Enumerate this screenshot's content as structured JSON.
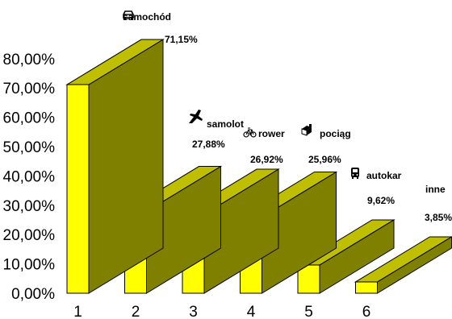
{
  "chart_data": {
    "type": "bar",
    "style": "3d",
    "categories": [
      "1",
      "2",
      "3",
      "4",
      "5",
      "6"
    ],
    "series_labels": [
      "samochód",
      "samolot",
      "rower",
      "pociąg",
      "autokar",
      "inne"
    ],
    "series_icons": [
      "car-icon",
      "airplane-icon",
      "bicycle-icon",
      "train-icon",
      "bus-icon",
      ""
    ],
    "values": [
      71.15,
      27.88,
      26.92,
      25.96,
      9.62,
      3.85
    ],
    "value_labels": [
      "71,15%",
      "27,88%",
      "26,92%",
      "25,96%",
      "9,62%",
      "3,85%"
    ],
    "ylim": [
      0,
      80
    ],
    "yticks": [
      "0,00%",
      "10,00%",
      "20,00%",
      "30,00%",
      "40,00%",
      "50,00%",
      "60,00%",
      "70,00%",
      "80,00%"
    ],
    "colors": {
      "front": "#ffff00",
      "side": "#808000",
      "top": "#bfbf00",
      "edge": "#000000"
    },
    "grid": false,
    "legend": "none"
  }
}
